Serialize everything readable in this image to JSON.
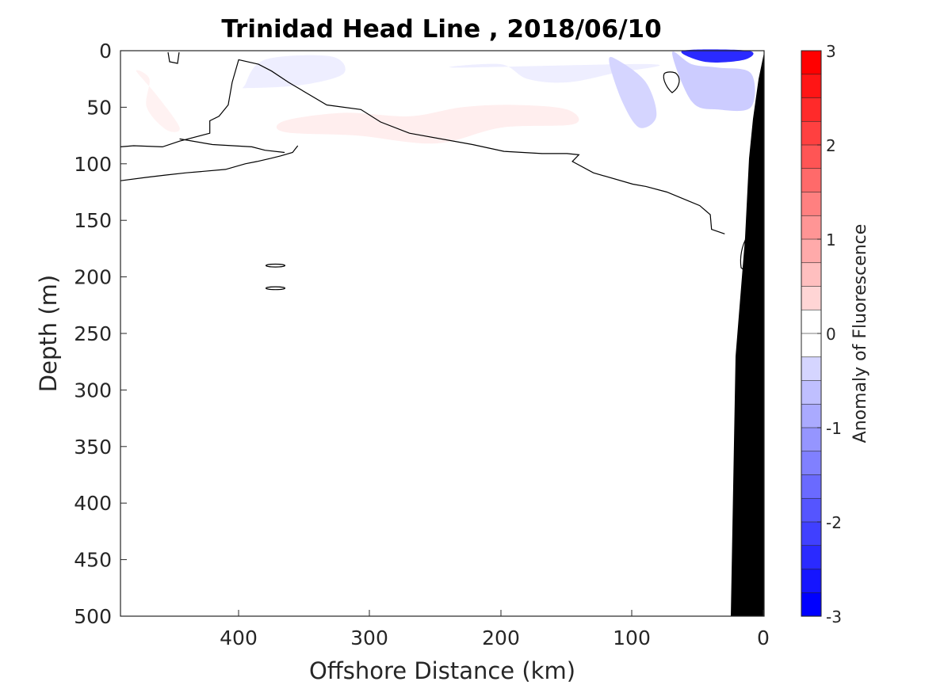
{
  "chart_data": {
    "type": "contour",
    "title": "Trinidad Head Line , 2018/06/10",
    "xlabel": "Offshore Distance (km)",
    "ylabel": "Depth (m)",
    "xlim": [
      490,
      0
    ],
    "x_reversed": true,
    "ylim": [
      500,
      0
    ],
    "y_reversed": true,
    "x_ticks": [
      "400",
      "300",
      "200",
      "100",
      "0"
    ],
    "y_ticks": [
      "0",
      "50",
      "100",
      "150",
      "200",
      "250",
      "300",
      "350",
      "400",
      "450",
      "500"
    ],
    "colorbar": {
      "label": "Anomaly of Fluorescence",
      "range": [
        -3,
        3
      ],
      "ticks": [
        "3",
        "2",
        "1",
        "0",
        "-1",
        "-2",
        "-3"
      ],
      "levels": 24,
      "colormap": "blue-white-red"
    },
    "bathymetry_color": "#000000",
    "anomaly_regions": [
      {
        "sign": "positive",
        "value": 0.15,
        "x": [
          478,
          468,
          470,
          455,
          445,
          462
        ],
        "y": [
          18,
          25,
          50,
          70,
          68,
          40
        ]
      },
      {
        "sign": "positive",
        "value": 0.2,
        "x": [
          365,
          320,
          270,
          230,
          190,
          150,
          145,
          200,
          250,
          310,
          365
        ],
        "y": [
          62,
          55,
          58,
          50,
          48,
          52,
          65,
          68,
          82,
          75,
          72
        ]
      },
      {
        "sign": "negative",
        "value": -0.2,
        "x": [
          395,
          380,
          330,
          320,
          350,
          392
        ],
        "y": [
          30,
          8,
          5,
          20,
          30,
          33
        ]
      },
      {
        "sign": "negative",
        "value": -0.2,
        "x": [
          235,
          200,
          180,
          150,
          115,
          85
        ],
        "y": [
          15,
          12,
          25,
          28,
          20,
          12
        ]
      },
      {
        "sign": "negative",
        "value": -0.5,
        "x": [
          118,
          108,
          95,
          82,
          90,
          112
        ],
        "y": [
          10,
          45,
          68,
          58,
          28,
          8
        ]
      },
      {
        "sign": "negative",
        "value": -0.6,
        "x": [
          70,
          55,
          35,
          10,
          10,
          35,
          55
        ],
        "y": [
          2,
          12,
          15,
          20,
          50,
          52,
          45
        ]
      },
      {
        "sign": "negative",
        "value": -2.5,
        "x": [
          62,
          44,
          15,
          12
        ],
        "y": [
          0,
          10,
          8,
          0
        ]
      }
    ],
    "zero_contours": [
      {
        "x": [
          490,
          480,
          458,
          445,
          422,
          422,
          415,
          408,
          405,
          400,
          385,
          375,
          362,
          333,
          307,
          292,
          270,
          222,
          198,
          169,
          150,
          141,
          146,
          130,
          100,
          90,
          74,
          49,
          41,
          40,
          30
        ],
        "y": [
          85,
          84,
          85,
          80,
          73,
          62,
          58,
          48,
          28,
          8,
          12,
          18,
          28,
          48,
          52,
          63,
          73,
          83,
          89,
          91,
          91,
          92,
          98,
          108,
          118,
          120,
          125,
          137,
          145,
          158,
          162
        ]
      },
      {
        "x": [
          490,
          470,
          456,
          440,
          410,
          395,
          386,
          375,
          368,
          359,
          355
        ],
        "y": [
          115,
          112,
          110,
          108,
          105,
          100,
          98,
          95,
          93,
          90,
          84
        ]
      },
      {
        "x": [
          445,
          420,
          390,
          380,
          365
        ],
        "y": [
          78,
          83,
          85,
          88,
          90
        ]
      }
    ],
    "small_contours": [
      {
        "x": 372,
        "y": 190
      },
      {
        "x": 372,
        "y": 210
      }
    ]
  }
}
